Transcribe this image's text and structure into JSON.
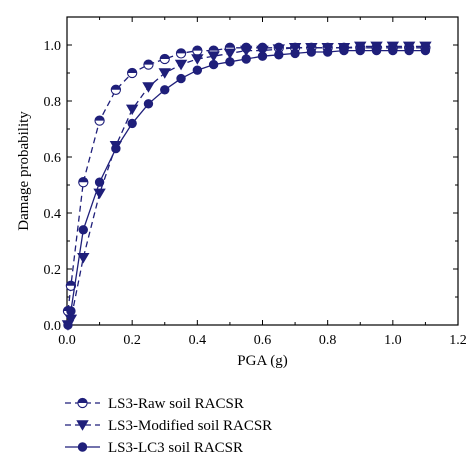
{
  "chart_data": {
    "type": "line",
    "title": "",
    "xlabel": "PGA (g)",
    "ylabel": "Damage probability",
    "xlim": [
      0,
      1.2
    ],
    "ylim": [
      0,
      1.1
    ],
    "xticks": [
      "0.0",
      "0.2",
      "0.4",
      "0.6",
      "0.8",
      "1.0",
      "1.2"
    ],
    "yticks": [
      "0.0",
      "0.2",
      "0.4",
      "0.6",
      "0.8",
      "1.0"
    ],
    "grid": false,
    "legend_position": "below",
    "series": [
      {
        "name": "LS3-Raw soil RACSR",
        "color": "#1f1f7a",
        "line": "dashed",
        "marker": "half-filled-circle",
        "points": [
          [
            0.003,
            0.05
          ],
          [
            0.012,
            0.14
          ],
          [
            0.05,
            0.51
          ],
          [
            0.1,
            0.73
          ],
          [
            0.15,
            0.84
          ],
          [
            0.2,
            0.9
          ],
          [
            0.25,
            0.93
          ],
          [
            0.3,
            0.95
          ],
          [
            0.35,
            0.97
          ],
          [
            0.4,
            0.98
          ],
          [
            0.45,
            0.98
          ],
          [
            0.5,
            0.99
          ],
          [
            0.55,
            0.99
          ],
          [
            0.6,
            0.99
          ],
          [
            0.65,
            0.99
          ],
          [
            0.7,
            0.99
          ],
          [
            0.75,
            0.99
          ],
          [
            0.8,
            0.99
          ],
          [
            0.85,
            0.99
          ],
          [
            0.9,
            0.99
          ],
          [
            0.95,
            0.99
          ],
          [
            1.0,
            0.99
          ],
          [
            1.05,
            0.99
          ],
          [
            1.1,
            0.99
          ]
        ]
      },
      {
        "name": "LS3-Modified soil RACSR",
        "color": "#1f1f7a",
        "line": "dashed",
        "marker": "triangle-down",
        "points": [
          [
            0.003,
            0.0
          ],
          [
            0.012,
            0.02
          ],
          [
            0.05,
            0.24
          ],
          [
            0.1,
            0.47
          ],
          [
            0.15,
            0.64
          ],
          [
            0.2,
            0.77
          ],
          [
            0.25,
            0.85
          ],
          [
            0.3,
            0.9
          ],
          [
            0.35,
            0.93
          ],
          [
            0.4,
            0.95
          ],
          [
            0.45,
            0.96
          ],
          [
            0.5,
            0.97
          ],
          [
            0.55,
            0.98
          ],
          [
            0.6,
            0.98
          ],
          [
            0.65,
            0.985
          ],
          [
            0.7,
            0.99
          ],
          [
            0.75,
            0.99
          ],
          [
            0.8,
            0.99
          ],
          [
            0.85,
            0.99
          ],
          [
            0.9,
            0.995
          ],
          [
            0.95,
            0.995
          ],
          [
            1.0,
            0.995
          ],
          [
            1.05,
            0.995
          ],
          [
            1.1,
            0.995
          ]
        ]
      },
      {
        "name": "LS3-LC3 soil RACSR",
        "color": "#1f1f7a",
        "line": "solid",
        "marker": "filled-circle",
        "points": [
          [
            0.003,
            0.0
          ],
          [
            0.012,
            0.05
          ],
          [
            0.05,
            0.34
          ],
          [
            0.1,
            0.51
          ],
          [
            0.15,
            0.63
          ],
          [
            0.2,
            0.72
          ],
          [
            0.25,
            0.79
          ],
          [
            0.3,
            0.84
          ],
          [
            0.35,
            0.88
          ],
          [
            0.4,
            0.91
          ],
          [
            0.45,
            0.93
          ],
          [
            0.5,
            0.94
          ],
          [
            0.55,
            0.95
          ],
          [
            0.6,
            0.96
          ],
          [
            0.65,
            0.965
          ],
          [
            0.7,
            0.97
          ],
          [
            0.75,
            0.975
          ],
          [
            0.8,
            0.975
          ],
          [
            0.85,
            0.98
          ],
          [
            0.9,
            0.98
          ],
          [
            0.95,
            0.98
          ],
          [
            1.0,
            0.98
          ],
          [
            1.05,
            0.98
          ],
          [
            1.1,
            0.98
          ]
        ]
      }
    ]
  }
}
